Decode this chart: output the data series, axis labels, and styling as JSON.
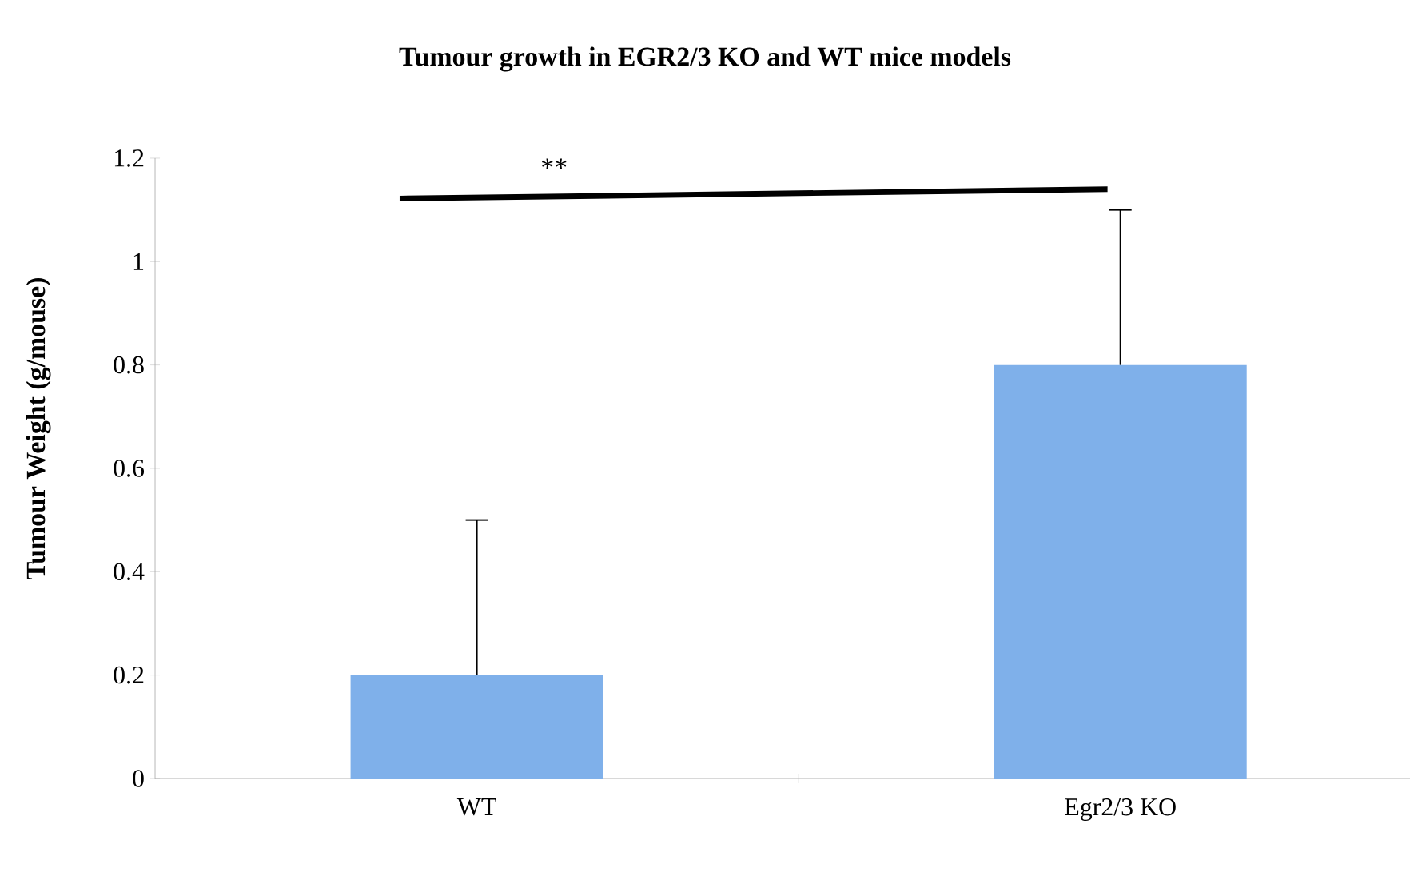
{
  "chart_data": {
    "type": "bar",
    "title": "Tumour growth in EGR2/3 KO and  WT  mice models",
    "ylabel": "Tumour Weight (g/mouse)",
    "categories": [
      "WT",
      "Egr2/3 KO"
    ],
    "values": [
      0.2,
      0.8
    ],
    "errors": [
      [
        0.2,
        0.5
      ],
      [
        0.8,
        1.1
      ]
    ],
    "color": "#7fb0ea",
    "ylim": [
      0,
      1.2
    ],
    "yticks": [
      0,
      0.2,
      0.4,
      0.6,
      0.8,
      1,
      1.2
    ],
    "annotations": [
      "**"
    ],
    "grid": false
  }
}
